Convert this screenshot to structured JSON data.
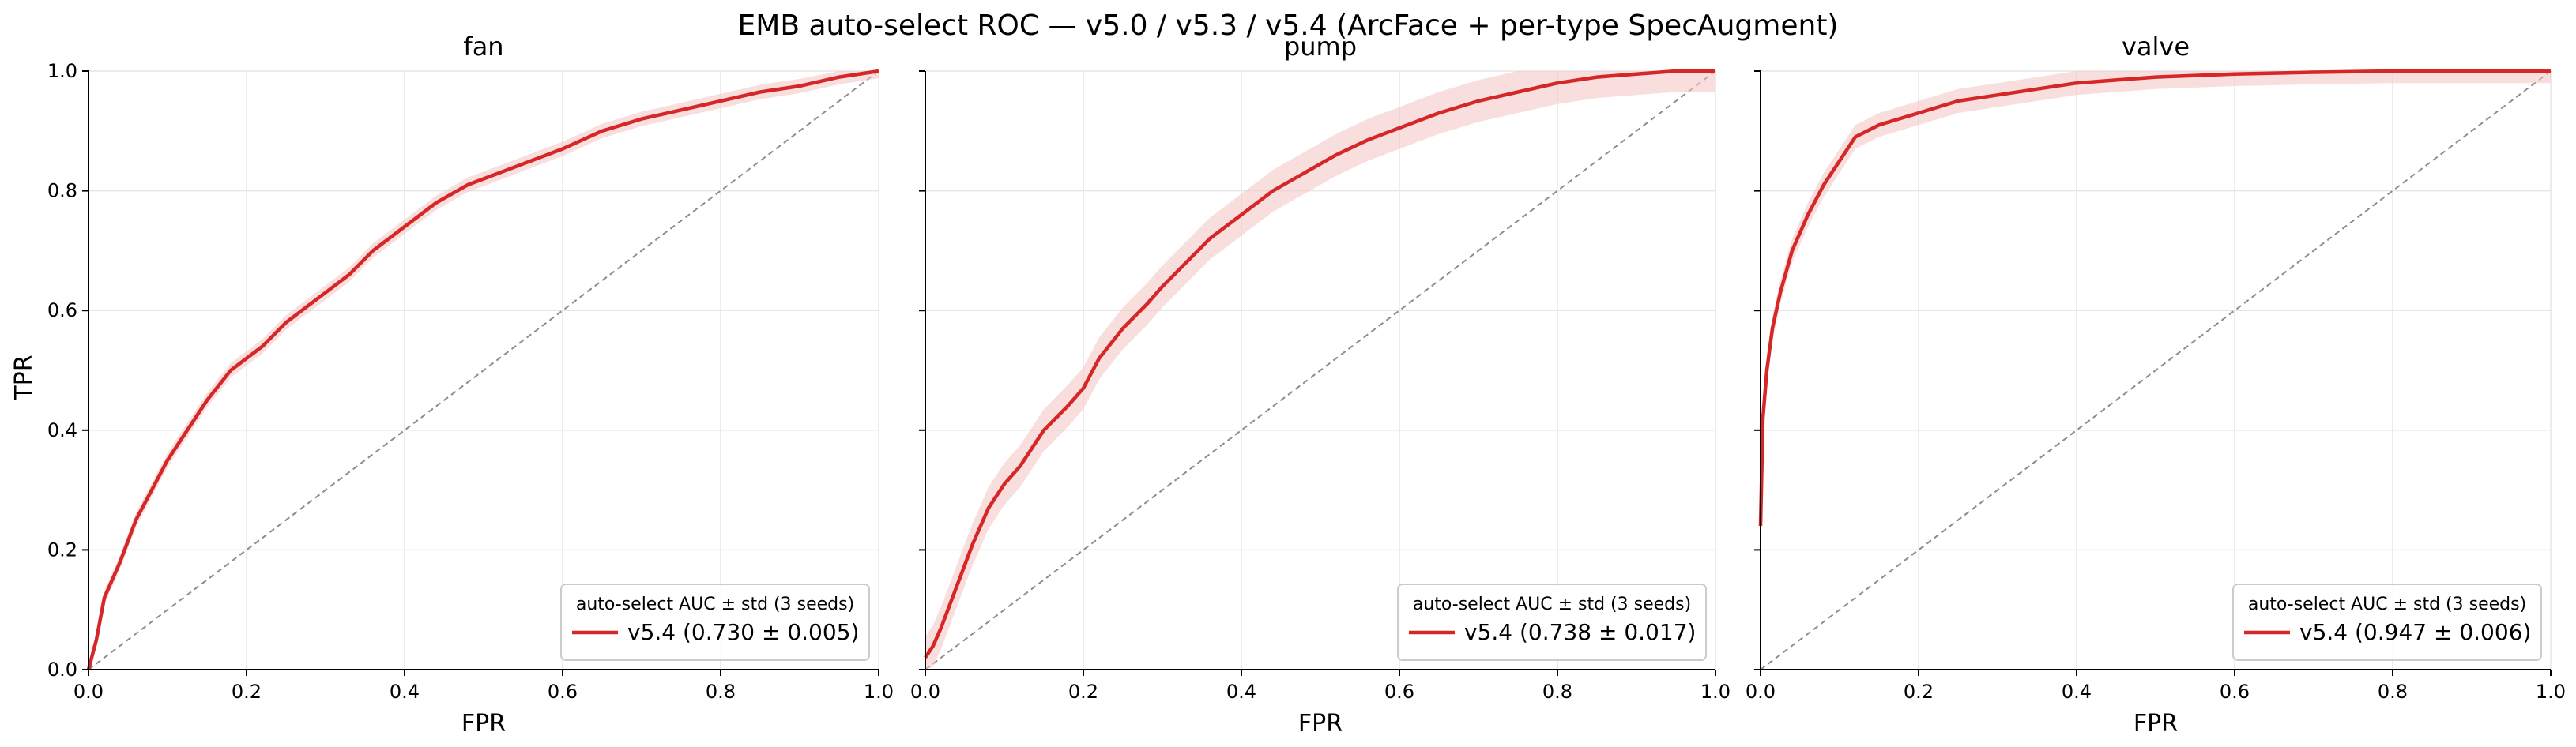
{
  "figure": {
    "suptitle": "EMB auto-select ROC — v5.0 / v5.3 / v5.4 (ArcFace + per-type SpecAugment)",
    "ylabel": "TPR"
  },
  "colors": {
    "curve": "#d62728",
    "band": "#f4c2c2",
    "chance": "#8c8c8c",
    "grid": "#e6e6e6",
    "axis": "#000000",
    "legend_edge": "#cccccc"
  },
  "chart_data": [
    {
      "type": "line",
      "title": "fan",
      "xlabel": "FPR",
      "ylabel": "TPR",
      "xlim": [
        0,
        1
      ],
      "ylim": [
        0,
        1
      ],
      "xticks": [
        "0.0",
        "0.2",
        "0.4",
        "0.6",
        "0.8",
        "1.0"
      ],
      "yticks": [
        "0.0",
        "0.2",
        "0.4",
        "0.6",
        "0.8",
        "1.0"
      ],
      "grid": true,
      "legend_position": "lower-right",
      "legend_title": "auto-select AUC ± std (3 seeds)",
      "chance_line": true,
      "series": [
        {
          "name": "v5.4  (0.730 ± 0.005)",
          "band_std": 0.012,
          "x": [
            0,
            0.01,
            0.02,
            0.04,
            0.06,
            0.08,
            0.1,
            0.12,
            0.15,
            0.18,
            0.2,
            0.22,
            0.25,
            0.28,
            0.3,
            0.33,
            0.36,
            0.4,
            0.44,
            0.48,
            0.52,
            0.56,
            0.6,
            0.65,
            0.7,
            0.75,
            0.8,
            0.85,
            0.9,
            0.95,
            1.0
          ],
          "y": [
            0,
            0.05,
            0.12,
            0.18,
            0.25,
            0.3,
            0.35,
            0.39,
            0.45,
            0.5,
            0.52,
            0.54,
            0.58,
            0.61,
            0.63,
            0.66,
            0.7,
            0.74,
            0.78,
            0.81,
            0.83,
            0.85,
            0.87,
            0.9,
            0.92,
            0.935,
            0.95,
            0.965,
            0.975,
            0.99,
            1.0
          ]
        }
      ]
    },
    {
      "type": "line",
      "title": "pump",
      "xlabel": "FPR",
      "ylabel": "",
      "xlim": [
        0,
        1
      ],
      "ylim": [
        0,
        1
      ],
      "xticks": [
        "0.0",
        "0.2",
        "0.4",
        "0.6",
        "0.8",
        "1.0"
      ],
      "yticks": [
        "",
        "",
        "",
        "",
        "",
        ""
      ],
      "grid": true,
      "legend_position": "lower-right",
      "legend_title": "auto-select AUC ± std (3 seeds)",
      "chance_line": true,
      "series": [
        {
          "name": "v5.4  (0.738 ± 0.017)",
          "band_std": 0.035,
          "x": [
            0,
            0.01,
            0.02,
            0.04,
            0.06,
            0.08,
            0.1,
            0.12,
            0.15,
            0.18,
            0.2,
            0.22,
            0.25,
            0.28,
            0.3,
            0.33,
            0.36,
            0.4,
            0.44,
            0.48,
            0.52,
            0.56,
            0.6,
            0.65,
            0.7,
            0.75,
            0.8,
            0.85,
            0.9,
            0.95,
            1.0
          ],
          "y": [
            0.02,
            0.04,
            0.07,
            0.14,
            0.21,
            0.27,
            0.31,
            0.34,
            0.4,
            0.44,
            0.47,
            0.52,
            0.57,
            0.61,
            0.64,
            0.68,
            0.72,
            0.76,
            0.8,
            0.83,
            0.86,
            0.885,
            0.905,
            0.93,
            0.95,
            0.965,
            0.98,
            0.99,
            0.995,
            1.0,
            1.0
          ]
        }
      ]
    },
    {
      "type": "line",
      "title": "valve",
      "xlabel": "FPR",
      "ylabel": "",
      "xlim": [
        0,
        1
      ],
      "ylim": [
        0,
        1
      ],
      "xticks": [
        "0.0",
        "0.2",
        "0.4",
        "0.6",
        "0.8",
        "1.0"
      ],
      "yticks": [
        "",
        "",
        "",
        "",
        "",
        ""
      ],
      "grid": true,
      "legend_position": "lower-right",
      "legend_title": "auto-select AUC ± std (3 seeds)",
      "chance_line": true,
      "series": [
        {
          "name": "v5.4  (0.947 ± 0.006)",
          "band_std": 0.02,
          "x": [
            0,
            0.003,
            0.008,
            0.015,
            0.025,
            0.04,
            0.06,
            0.08,
            0.1,
            0.12,
            0.15,
            0.2,
            0.25,
            0.3,
            0.35,
            0.4,
            0.45,
            0.5,
            0.6,
            0.7,
            0.8,
            0.9,
            1.0
          ],
          "y": [
            0.24,
            0.42,
            0.5,
            0.57,
            0.63,
            0.7,
            0.76,
            0.81,
            0.85,
            0.89,
            0.91,
            0.93,
            0.95,
            0.96,
            0.97,
            0.98,
            0.985,
            0.99,
            0.995,
            0.998,
            1.0,
            1.0,
            1.0
          ]
        }
      ]
    }
  ]
}
